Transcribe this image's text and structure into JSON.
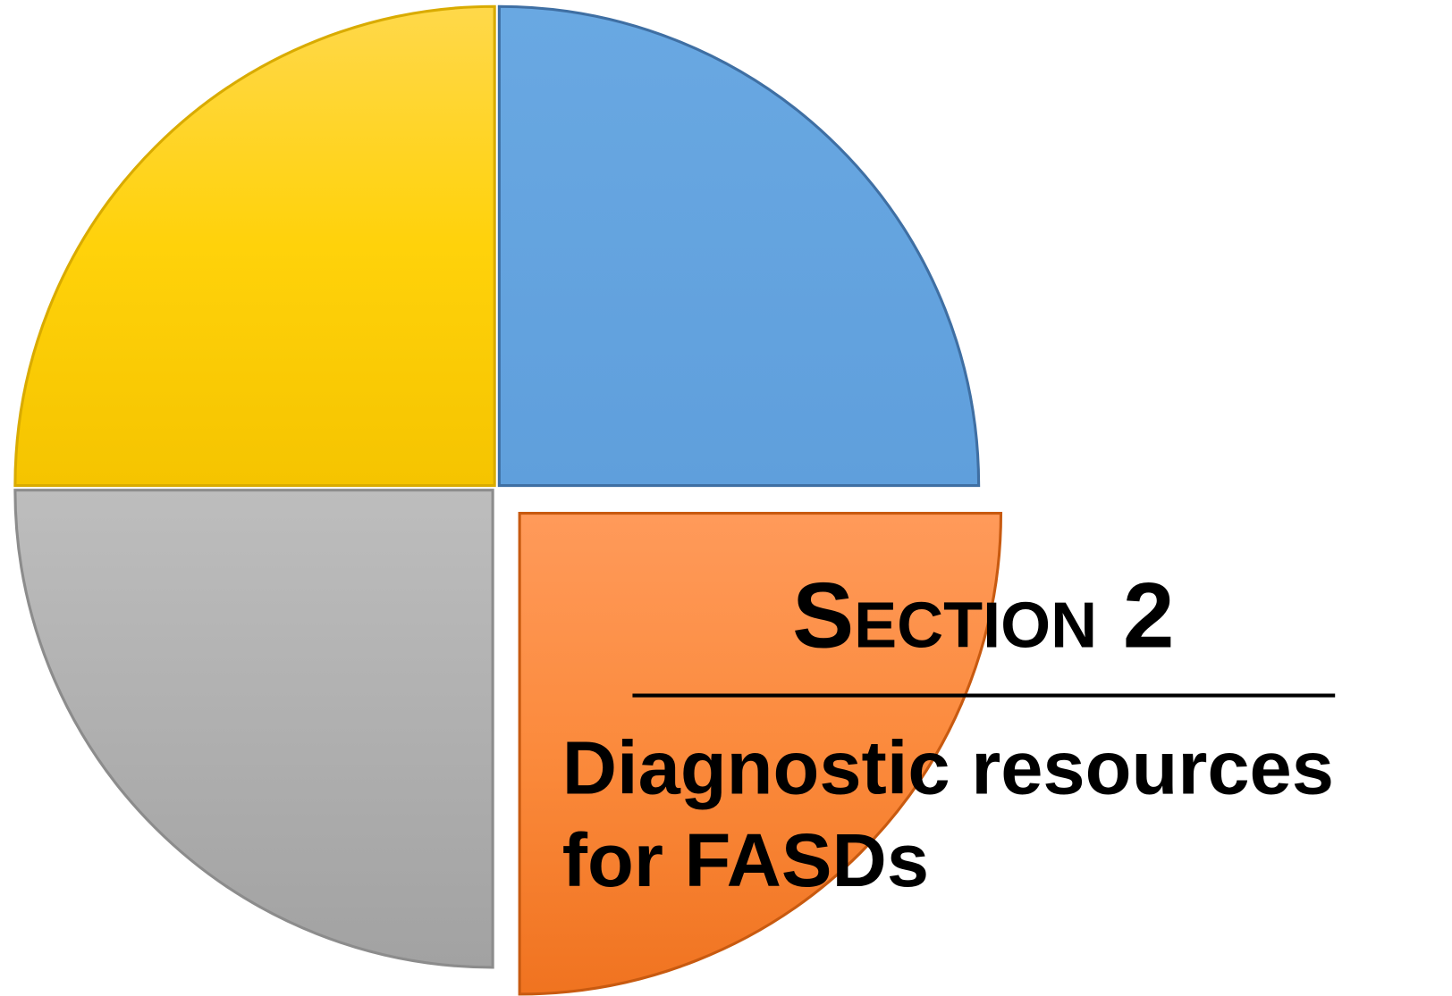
{
  "heading": "Section 2",
  "subtitle_lines": [
    "Diagnostic resources",
    "for FASDs"
  ]
}
